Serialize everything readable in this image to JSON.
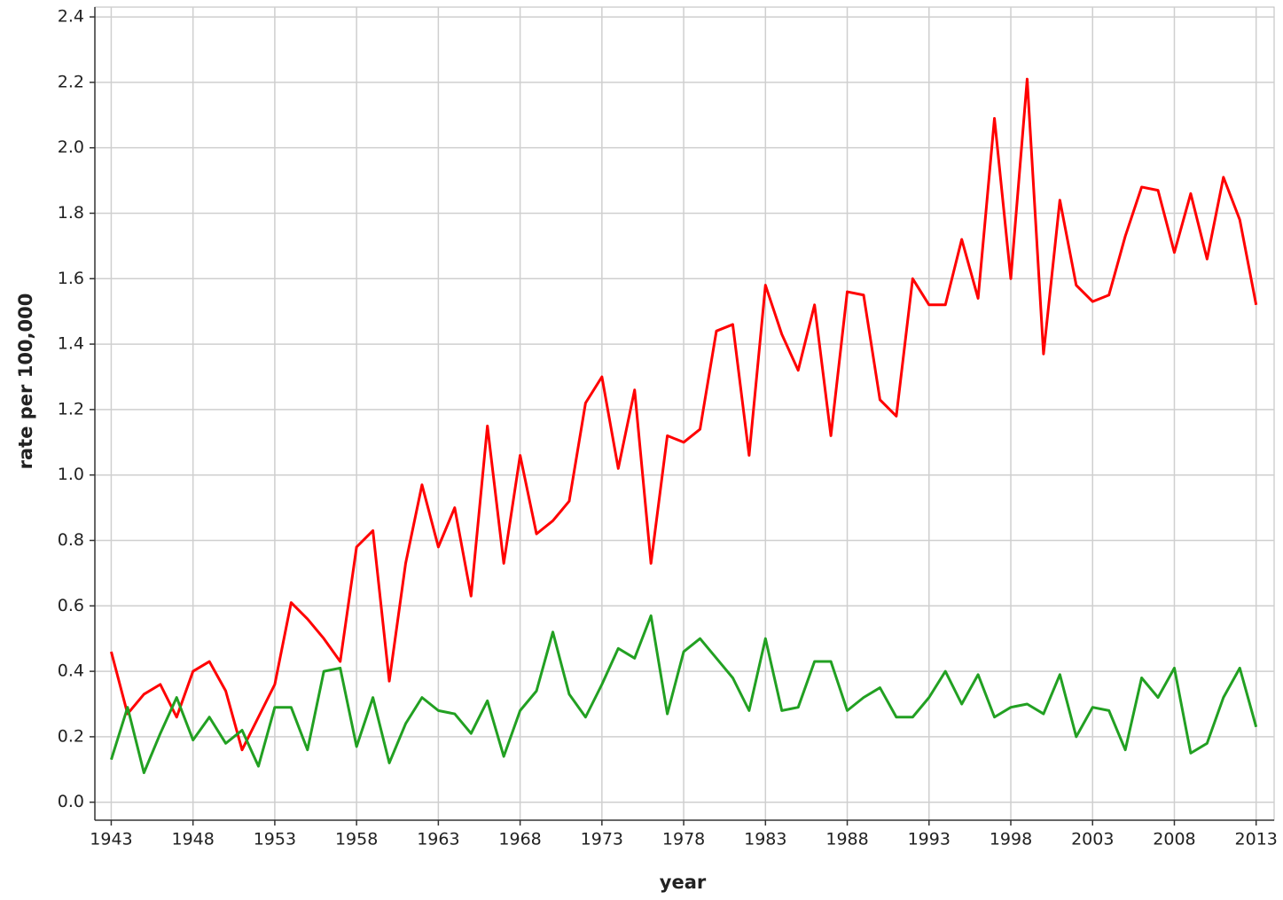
{
  "chart_data": {
    "type": "line",
    "xlabel": "year",
    "ylabel": "rate per 100,000",
    "x": [
      1943,
      1944,
      1945,
      1946,
      1947,
      1948,
      1949,
      1950,
      1951,
      1952,
      1953,
      1954,
      1955,
      1956,
      1957,
      1958,
      1959,
      1960,
      1961,
      1962,
      1963,
      1964,
      1965,
      1966,
      1967,
      1968,
      1969,
      1970,
      1971,
      1972,
      1973,
      1974,
      1975,
      1976,
      1977,
      1978,
      1979,
      1980,
      1981,
      1982,
      1983,
      1984,
      1985,
      1986,
      1987,
      1988,
      1989,
      1990,
      1991,
      1992,
      1993,
      1994,
      1995,
      1996,
      1997,
      1998,
      1999,
      2000,
      2001,
      2002,
      2003,
      2004,
      2005,
      2006,
      2007,
      2008,
      2009,
      2010,
      2011,
      2012,
      2013
    ],
    "series": [
      {
        "color": "#ff0000",
        "values": [
          0.46,
          0.27,
          0.33,
          0.36,
          0.26,
          0.4,
          0.43,
          0.34,
          0.16,
          0.26,
          0.36,
          0.61,
          0.56,
          0.5,
          0.43,
          0.78,
          0.83,
          0.37,
          0.73,
          0.97,
          0.78,
          0.9,
          0.63,
          1.15,
          0.73,
          1.06,
          0.82,
          0.86,
          0.92,
          1.22,
          1.3,
          1.02,
          1.26,
          0.73,
          1.12,
          1.1,
          1.14,
          1.44,
          1.46,
          1.06,
          1.58,
          1.43,
          1.32,
          1.52,
          1.12,
          1.56,
          1.55,
          1.23,
          1.18,
          1.6,
          1.52,
          1.52,
          1.72,
          1.54,
          2.09,
          1.6,
          2.21,
          1.37,
          1.84,
          1.58,
          1.53,
          1.55,
          1.73,
          1.88,
          1.87,
          1.68,
          1.86,
          1.66,
          1.91,
          1.78,
          1.52
        ]
      },
      {
        "color": "#22a022",
        "values": [
          0.13,
          0.29,
          0.09,
          0.21,
          0.32,
          0.19,
          0.26,
          0.18,
          0.22,
          0.11,
          0.29,
          0.29,
          0.16,
          0.4,
          0.41,
          0.17,
          0.32,
          0.12,
          0.24,
          0.32,
          0.28,
          0.27,
          0.21,
          0.31,
          0.14,
          0.28,
          0.34,
          0.52,
          0.33,
          0.26,
          0.36,
          0.47,
          0.44,
          0.57,
          0.27,
          0.46,
          0.5,
          0.44,
          0.38,
          0.28,
          0.5,
          0.28,
          0.29,
          0.43,
          0.43,
          0.28,
          0.32,
          0.35,
          0.26,
          0.26,
          0.32,
          0.4,
          0.3,
          0.39,
          0.26,
          0.29,
          0.3,
          0.27,
          0.39,
          0.2,
          0.29,
          0.28,
          0.16,
          0.38,
          0.32,
          0.41,
          0.15,
          0.18,
          0.32,
          0.41,
          0.23
        ]
      }
    ],
    "xlim": [
      1942,
      2014.1
    ],
    "ylim": [
      -0.055,
      2.43
    ],
    "xticks": [
      1943,
      1948,
      1953,
      1958,
      1963,
      1968,
      1973,
      1978,
      1983,
      1988,
      1993,
      1998,
      2003,
      2008,
      2013
    ],
    "yticks": [
      {
        "value": 0,
        "label": "0.0"
      },
      0.2,
      0.4,
      0.6,
      0.8,
      {
        "value": 1,
        "label": "1.0"
      },
      1.2,
      1.4,
      1.6,
      1.8,
      {
        "value": 2,
        "label": "2.0"
      },
      2.2,
      2.4
    ],
    "grid": true
  }
}
